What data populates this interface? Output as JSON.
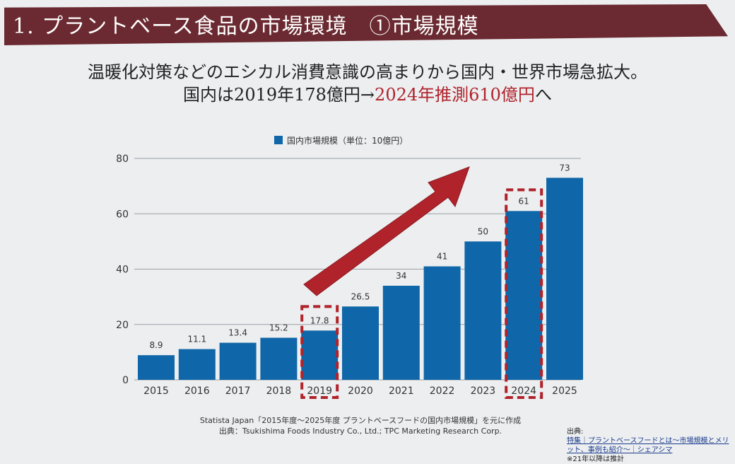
{
  "header": {
    "title": "1. プラントベース食品の市場環境　①市場規模"
  },
  "subtitle": {
    "line1": "温暖化対策などのエシカル消費意識の高まりから国内・世界市場急拡大。",
    "line2_plain": "国内は2019年178億円→",
    "line2_highlight": "2024年推測610億円",
    "line2_end": "へ"
  },
  "colors": {
    "bar": "#0f66a8",
    "highlight": "#b0232b",
    "banner": "#6b2a31"
  },
  "chart_data": {
    "type": "bar",
    "categories": [
      "2015",
      "2016",
      "2017",
      "2018",
      "2019",
      "2020",
      "2021",
      "2022",
      "2023",
      "2024",
      "2025"
    ],
    "values": [
      8.9,
      11.1,
      13.4,
      15.2,
      17.8,
      26.5,
      34,
      41,
      50,
      61,
      73
    ],
    "value_labels": [
      "8.9",
      "11.1",
      "13.4",
      "15.2",
      "17.8",
      "26.5",
      "34",
      "41",
      "50",
      "61",
      "73"
    ],
    "series": [
      {
        "name": "国内市場規模（単位：10億円）"
      }
    ],
    "yticks": [
      "0",
      "20",
      "40",
      "60",
      "80"
    ],
    "ylim": [
      0,
      80
    ],
    "grid": true,
    "legend": "top",
    "highlighted_categories": [
      "2019",
      "2024"
    ],
    "annotation": "upward arrow from 2019 to 2024"
  },
  "source": {
    "line1": "Statista Japan「2015年度～2025年度 プラントベースフードの国内市場規模」を元に作成",
    "line2": "出典：Tsukishima Foods Industry Co., Ltd.; TPC Marketing Research Corp."
  },
  "note": {
    "prefix": "出典:",
    "link": "特集｜プラントベースフードとは～市場規模とメリット、事例も紹介～｜シェアシマ",
    "footnote": "※21年以降は推計"
  }
}
